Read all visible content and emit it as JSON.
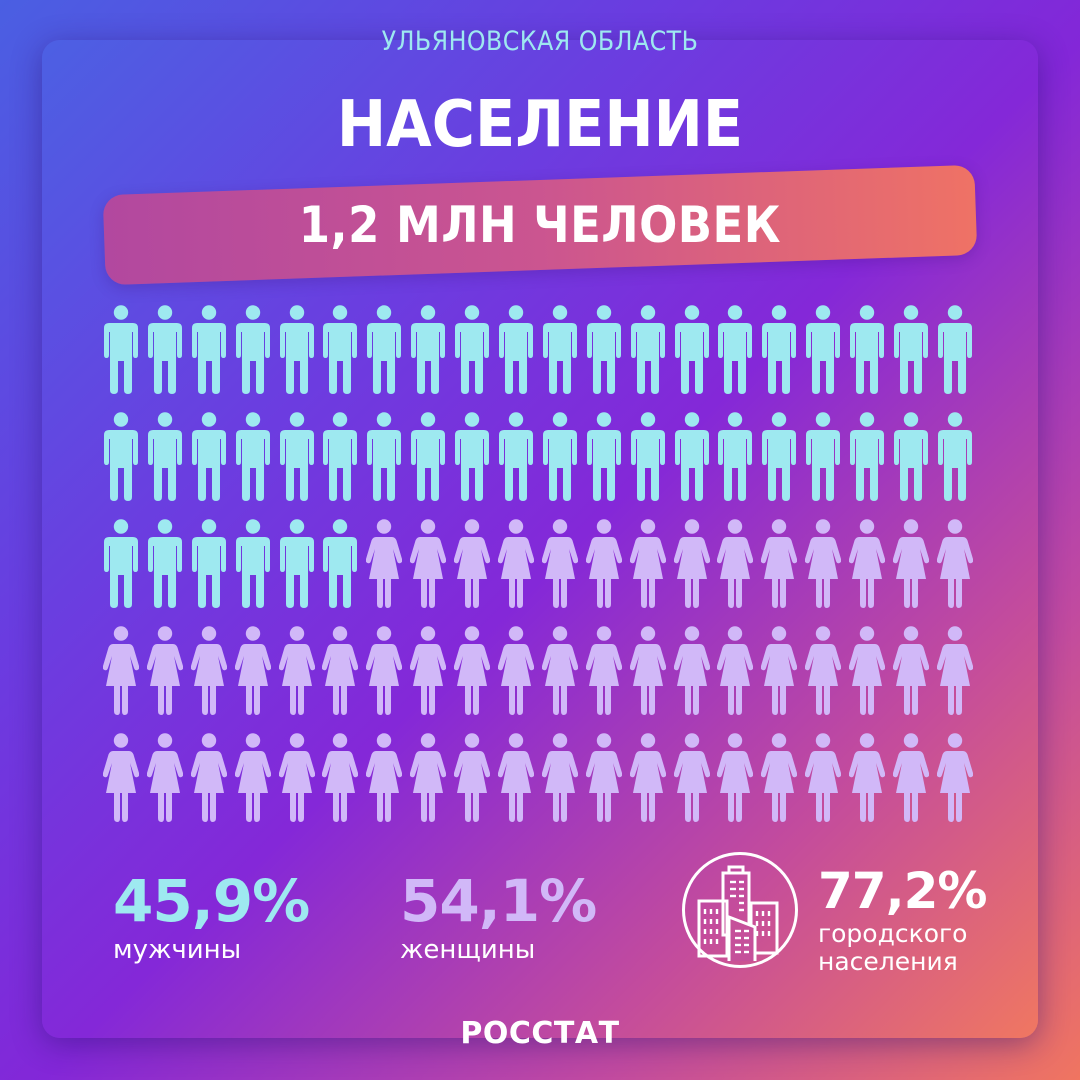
{
  "header": {
    "region": "УЛЬЯНОВСКАЯ ОБЛАСТЬ",
    "title": "НАСЕЛЕНИЕ",
    "banner": "1,2 МЛН ЧЕЛОВЕК"
  },
  "colors": {
    "male": "#9ee9f0",
    "female": "#d1b8f8",
    "gradient_start": "#4a5fe2",
    "gradient_mid": "#8327d8",
    "gradient_end": "#f07560",
    "banner_start": "#b2489f",
    "banner_end": "#ef7265"
  },
  "pictogram": {
    "rows": 5,
    "columns": 20,
    "total_icons": 100,
    "male_icons": 46,
    "female_icons": 54
  },
  "stats": {
    "men": {
      "value": "45,9%",
      "label": "мужчины"
    },
    "women": {
      "value": "54,1%",
      "label": "женщины"
    },
    "urban": {
      "value": "77,2%",
      "label_line1": "городского",
      "label_line2": "населения",
      "icon": "city-buildings-icon"
    }
  },
  "footer": {
    "source": "РОССТАТ"
  },
  "chart_data": {
    "type": "pictogram",
    "title": "НАСЕЛЕНИЕ",
    "subtitle": "УЛЬЯНОВСКАЯ ОБЛАСТЬ",
    "total_population": "1,2 млн человек",
    "categories": [
      "мужчины",
      "женщины"
    ],
    "values": [
      45.9,
      54.1
    ],
    "unit": "%",
    "icon_grid": {
      "rows": 5,
      "columns": 20,
      "male": 46,
      "female": 54
    },
    "annotations": [
      {
        "label": "городского населения",
        "value": 77.2,
        "unit": "%"
      }
    ],
    "source": "РОССТАТ"
  }
}
